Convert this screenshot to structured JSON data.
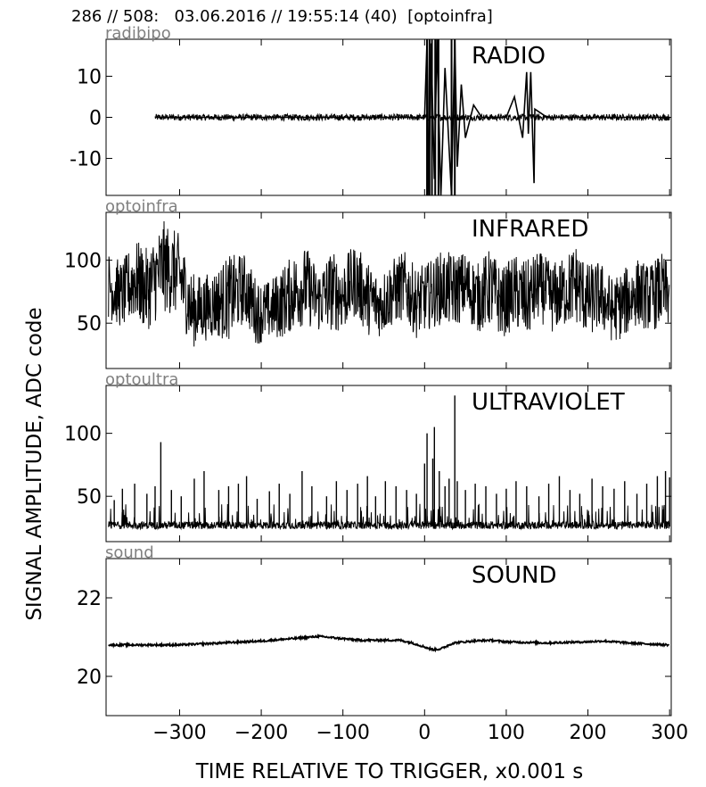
{
  "header": "286 // 508:   03.06.2016 // 19:55:14 (40)  [optoinfra]",
  "ylabel": "SIGNAL AMPLITUDE,  ADC code",
  "xlabel": "TIME RELATIVE TO TRIGGER,   x0.001 s",
  "colors": {
    "trace": "#000000",
    "channel_label": "#808080",
    "frame": "#000000",
    "background": "#ffffff"
  },
  "chart_data": [
    {
      "type": "line",
      "channel": "radibipo",
      "title": "RADIO",
      "xlim": [
        -390,
        302
      ],
      "ylim": [
        -19,
        19
      ],
      "yticks": [
        -10,
        0,
        10
      ],
      "ytick_labels": [
        "-10",
        "0",
        "10"
      ],
      "series": [
        {
          "x": [
            -330,
            -300,
            -250,
            -200,
            -150,
            -100,
            -50,
            0,
            3,
            5,
            8,
            12,
            15,
            20,
            25,
            33,
            37,
            40,
            45,
            50,
            60,
            70,
            100,
            110,
            120,
            125,
            127,
            130,
            134,
            135,
            150,
            200,
            250,
            300
          ],
          "y": [
            0,
            0,
            0,
            0,
            0,
            0,
            0,
            0,
            19,
            -19,
            18,
            -15,
            19,
            -19,
            12,
            -19,
            19,
            -12,
            8,
            -5,
            3,
            0,
            0,
            5,
            -5,
            11,
            -4,
            11,
            -16,
            2,
            0,
            0,
            0,
            0
          ]
        }
      ],
      "noise_band": 0.8
    },
    {
      "type": "line",
      "channel": "optoinfra",
      "title": "INFRARED",
      "xlim": [
        -390,
        302
      ],
      "ylim": [
        14,
        138
      ],
      "yticks": [
        50,
        100
      ],
      "ytick_labels": [
        "50",
        "100"
      ],
      "series": [
        {
          "x": [
            -387,
            -370,
            -355,
            -340,
            -320,
            -300,
            -285,
            -270,
            -255,
            -240,
            -220,
            -205,
            -190,
            -175,
            -160,
            -145,
            -130,
            -115,
            -100,
            -85,
            -70,
            -55,
            -40,
            -25,
            -10,
            5,
            20,
            35,
            50,
            65,
            80,
            95,
            110,
            125,
            140,
            155,
            170,
            185,
            200,
            215,
            230,
            245,
            260,
            275,
            290,
            300
          ],
          "y": [
            80,
            72,
            85,
            76,
            95,
            88,
            60,
            62,
            66,
            70,
            78,
            58,
            60,
            66,
            75,
            80,
            68,
            76,
            72,
            84,
            70,
            64,
            74,
            80,
            66,
            72,
            78,
            76,
            80,
            70,
            78,
            66,
            75,
            68,
            80,
            70,
            74,
            82,
            68,
            72,
            60,
            66,
            75,
            70,
            76,
            72
          ],
          "min": [
            44,
            48,
            42,
            46,
            40,
            38,
            30,
            32,
            33,
            28,
            38,
            34,
            33,
            40,
            30,
            34,
            38,
            36,
            32,
            40,
            38,
            35,
            36,
            40,
            32,
            36,
            38,
            40,
            42,
            36,
            34,
            38,
            28,
            35,
            40,
            42,
            36,
            38,
            34,
            40,
            36,
            38,
            42,
            40,
            38,
            40
          ],
          "max": [
            115,
            120,
            128,
            135,
            138,
            126,
            110,
            102,
            108,
            118,
            112,
            104,
            96,
            116,
            112,
            118,
            106,
            122,
            110,
            118,
            116,
            102,
            108,
            114,
            106,
            108,
            116,
            120,
            114,
            110,
            118,
            112,
            108,
            120,
            114,
            118,
            110,
            124,
            112,
            114,
            106,
            112,
            114,
            110,
            118,
            108
          ]
        }
      ]
    },
    {
      "type": "line",
      "channel": "optoultra",
      "title": "ULTRAVIOLET",
      "xlim": [
        -390,
        302
      ],
      "ylim": [
        14,
        138
      ],
      "yticks": [
        50,
        100
      ],
      "ytick_labels": [
        "50",
        "100"
      ],
      "baseline": 26,
      "series": [
        {
          "spike_x": [
            -380,
            -370,
            -355,
            -340,
            -330,
            -323,
            -310,
            -298,
            -282,
            -270,
            -252,
            -240,
            -228,
            -218,
            -205,
            -190,
            -178,
            -165,
            -150,
            -138,
            -120,
            -108,
            -95,
            -82,
            -70,
            -60,
            -48,
            -35,
            -22,
            -10,
            0,
            3,
            10,
            12,
            18,
            25,
            30,
            37,
            40,
            50,
            62,
            75,
            88,
            100,
            112,
            125,
            140,
            152,
            165,
            178,
            190,
            205,
            218,
            232,
            245,
            260,
            272,
            285,
            295,
            300
          ],
          "spike_y": [
            47,
            56,
            60,
            52,
            58,
            93,
            55,
            50,
            64,
            70,
            55,
            58,
            60,
            66,
            48,
            54,
            60,
            52,
            70,
            58,
            50,
            62,
            55,
            60,
            66,
            50,
            62,
            58,
            55,
            52,
            76,
            100,
            80,
            105,
            70,
            58,
            64,
            130,
            62,
            55,
            60,
            58,
            52,
            56,
            62,
            58,
            50,
            60,
            66,
            55,
            52,
            64,
            58,
            56,
            62,
            52,
            60,
            66,
            70,
            65
          ]
        }
      ]
    },
    {
      "type": "line",
      "channel": "sound",
      "title": "SOUND",
      "xlim": [
        -390,
        302
      ],
      "ylim": [
        19,
        23
      ],
      "yticks": [
        20,
        22
      ],
      "ytick_labels": [
        "20",
        "22"
      ],
      "series": [
        {
          "x": [
            -387,
            -350,
            -300,
            -250,
            -200,
            -150,
            -130,
            -110,
            -80,
            -50,
            -30,
            -15,
            0,
            10,
            20,
            35,
            60,
            80,
            100,
            150,
            200,
            220,
            250,
            300
          ],
          "y": [
            20.8,
            20.8,
            20.8,
            20.85,
            20.9,
            20.98,
            21.02,
            20.98,
            20.92,
            20.92,
            20.92,
            20.85,
            20.75,
            20.68,
            20.7,
            20.85,
            20.9,
            20.92,
            20.88,
            20.85,
            20.88,
            20.9,
            20.85,
            20.8
          ]
        }
      ]
    }
  ],
  "xticks": [
    -300,
    -200,
    -100,
    0,
    100,
    200,
    300
  ],
  "xtick_labels": [
    "−300",
    "−200",
    "−100",
    "0",
    "100",
    "200",
    "300"
  ]
}
